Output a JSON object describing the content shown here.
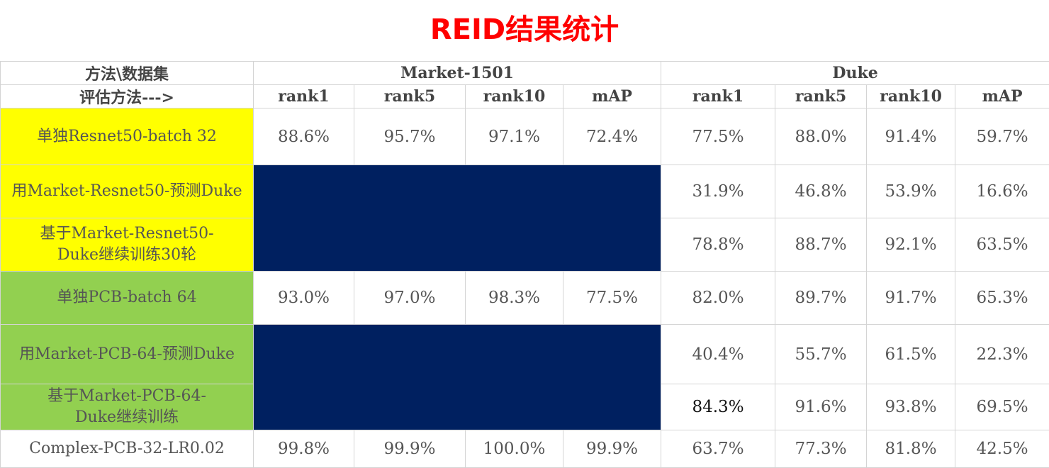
{
  "title": "REID结果统计",
  "header": {
    "method_dataset": "方法\\数据集",
    "eval_method": "评估方法--->",
    "market": "Market-1501",
    "duke": "Duke",
    "metrics": [
      "rank1",
      "rank5",
      "rank10",
      "mAP",
      "rank1",
      "rank5",
      "rank10",
      "mAP"
    ]
  },
  "rows": [
    {
      "method": "单独Resnet50-batch 32",
      "market": [
        "88.6%",
        "95.7%",
        "97.1%",
        "72.4%"
      ],
      "duke": [
        "77.5%",
        "88.0%",
        "91.4%",
        "59.7%"
      ],
      "bg": "#ffff00"
    },
    {
      "method": "用Market-Resnet50-预测Duke",
      "market": null,
      "duke": [
        "31.9%",
        "46.8%",
        "53.9%",
        "16.6%"
      ],
      "bg": "#ffff00"
    },
    {
      "method_line1": "基于Market-Resnet50-",
      "method_line2": "Duke继续训练30轮",
      "market": null,
      "duke": [
        "78.8%",
        "88.7%",
        "92.1%",
        "63.5%"
      ],
      "bg": "#ffff00"
    },
    {
      "method": "单独PCB-batch 64",
      "market": [
        "93.0%",
        "97.0%",
        "98.3%",
        "77.5%"
      ],
      "duke": [
        "82.0%",
        "89.7%",
        "91.7%",
        "65.3%"
      ],
      "bg": "#92d050"
    },
    {
      "method": "用Market-PCB-64-预测Duke",
      "market": null,
      "duke": [
        "40.4%",
        "55.7%",
        "61.5%",
        "22.3%"
      ],
      "bg": "#92d050"
    },
    {
      "method_line1": "基于Market-PCB-64-",
      "method_line2": "Duke继续训练",
      "market": null,
      "duke": [
        "84.3%",
        "91.6%",
        "93.8%",
        "69.5%"
      ],
      "bg": "#92d050"
    },
    {
      "method": "Complex-PCB-32-LR0.02",
      "market": [
        "99.8%",
        "99.9%",
        "100.0%",
        "99.9%"
      ],
      "duke": [
        "63.7%",
        "77.3%",
        "81.8%",
        "42.5%"
      ],
      "bg": "#ffffff"
    }
  ],
  "colors": {
    "title": "#ff0000",
    "yellow": "#ffff00",
    "green": "#92d050",
    "navy": "#002060"
  }
}
